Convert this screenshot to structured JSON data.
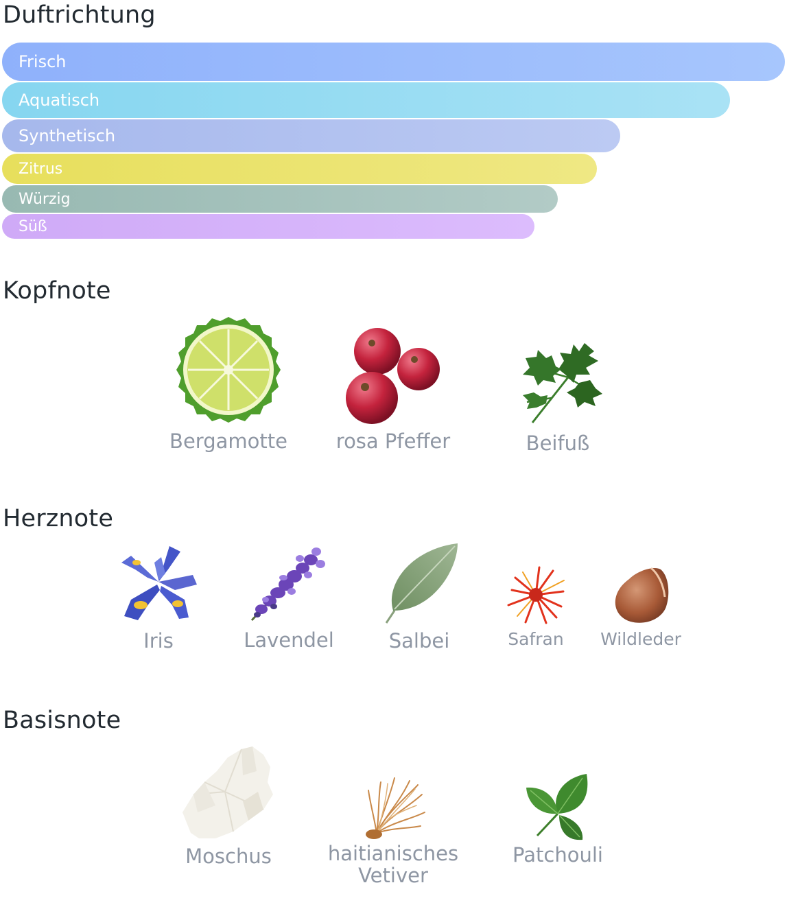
{
  "duftrichtung": {
    "title": "Duftrichtung",
    "chart_data": {
      "type": "bar",
      "orientation": "horizontal",
      "categories": [
        "Frisch",
        "Aquatisch",
        "Synthetisch",
        "Zitrus",
        "Würzig",
        "Süß"
      ],
      "values": [
        100,
        93,
        79,
        76,
        71,
        68
      ],
      "colors": [
        [
          "#8fb1fb",
          "#a7c6fd"
        ],
        [
          "#86d6f0",
          "#a9e2f5"
        ],
        [
          "#a6b8ec",
          "#bccaf3"
        ],
        [
          "#e7df5c",
          "#efe884"
        ],
        [
          "#98b9b2",
          "#b2cbc6"
        ],
        [
          "#cfaaf7",
          "#dcbcfd"
        ]
      ]
    }
  },
  "kopfnote": {
    "title": "Kopfnote",
    "items": [
      {
        "label": "Bergamotte",
        "icon": "bergamot-icon"
      },
      {
        "label": "rosa Pfeffer",
        "icon": "pink-pepper-icon"
      },
      {
        "label": "Beifuß",
        "icon": "mugwort-icon"
      }
    ]
  },
  "herznote": {
    "title": "Herznote",
    "items": [
      {
        "label": "Iris",
        "icon": "iris-icon"
      },
      {
        "label": "Lavendel",
        "icon": "lavender-icon"
      },
      {
        "label": "Salbei",
        "icon": "sage-icon"
      },
      {
        "label": "Safran",
        "icon": "saffron-icon"
      },
      {
        "label": "Wildleder",
        "icon": "suede-icon"
      }
    ]
  },
  "basisnote": {
    "title": "Basisnote",
    "items": [
      {
        "label": "Moschus",
        "icon": "musk-icon"
      },
      {
        "label": "haitianisches Vetiver",
        "icon": "vetiver-icon"
      },
      {
        "label": "Patchouli",
        "icon": "patchouli-icon"
      }
    ]
  }
}
